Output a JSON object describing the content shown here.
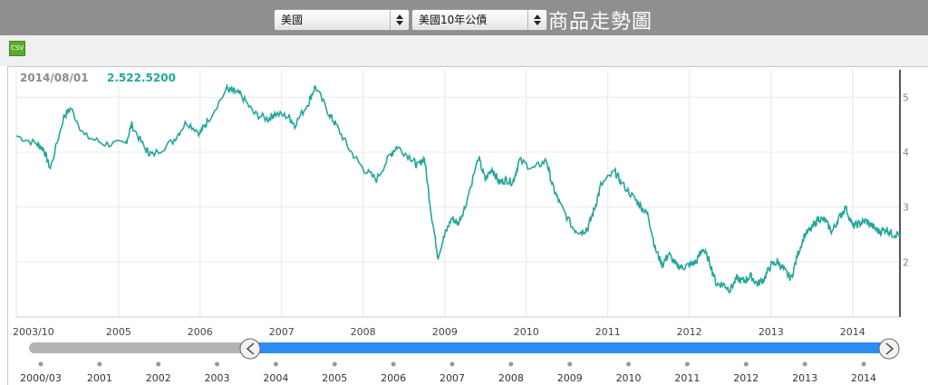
{
  "header": {
    "country_select": "美國",
    "product_select": "美國10年公債",
    "title": "商品走勢圖"
  },
  "toolbar": {
    "csv_label": "CSV"
  },
  "readout": {
    "date": "2014/08/01",
    "value": "2.522.5200"
  },
  "colors": {
    "series": "#26a69a",
    "navigator_track": "#b3b3b3",
    "navigator_range": "#2d8cf0",
    "topbar": "#8f8f8f"
  },
  "icons": {
    "select_arrows": "up-down-arrows-icon",
    "handle": "chevron-left-icon",
    "handle_right": "chevron-right-icon"
  },
  "chart_data": {
    "type": "line",
    "title": "",
    "xlabel": "",
    "ylabel": "",
    "xlim": [
      "2003-10-01",
      "2014-08-01"
    ],
    "ylim": [
      1,
      5.5
    ],
    "y_ticks": [
      "2",
      "3",
      "4",
      "5"
    ],
    "x_ticks": [
      "2003/10",
      "2005",
      "2006",
      "2007",
      "2008",
      "2009",
      "2010",
      "2011",
      "2012",
      "2013",
      "2014"
    ],
    "series": [
      {
        "name": "",
        "x": [
          "2003-10",
          "2004-01",
          "2004-02",
          "2004-03",
          "2004-05",
          "2004-06",
          "2004-08",
          "2004-11",
          "2005-02",
          "2005-03",
          "2005-05",
          "2005-06",
          "2005-09",
          "2005-11",
          "2006-01",
          "2006-02",
          "2006-05",
          "2006-06",
          "2006-07",
          "2006-09",
          "2006-11",
          "2006-12",
          "2007-02",
          "2007-03",
          "2007-05",
          "2007-06",
          "2007-08",
          "2007-09",
          "2007-11",
          "2008-01",
          "2008-03",
          "2008-05",
          "2008-06",
          "2008-08",
          "2008-09",
          "2008-10",
          "2008-11",
          "2008-12",
          "2009-01",
          "2009-02",
          "2009-03",
          "2009-04",
          "2009-06",
          "2009-07",
          "2009-08",
          "2009-09",
          "2009-10",
          "2009-11",
          "2009-12",
          "2010-02",
          "2010-04",
          "2010-05",
          "2010-06",
          "2010-08",
          "2010-09",
          "2010-10",
          "2010-11",
          "2010-12",
          "2011-02",
          "2011-03",
          "2011-05",
          "2011-06",
          "2011-07",
          "2011-08",
          "2011-09",
          "2011-10",
          "2011-11",
          "2011-12",
          "2012-01",
          "2012-02",
          "2012-03",
          "2012-04",
          "2012-05",
          "2012-06",
          "2012-07",
          "2012-08",
          "2012-09",
          "2012-10",
          "2012-11",
          "2012-12",
          "2013-01",
          "2013-02",
          "2013-03",
          "2013-04",
          "2013-05",
          "2013-06",
          "2013-07",
          "2013-08",
          "2013-09",
          "2013-10",
          "2013-11",
          "2013-12",
          "2014-01",
          "2014-02",
          "2014-03",
          "2014-04",
          "2014-05",
          "2014-06",
          "2014-07",
          "2014-08"
        ],
        "values": [
          4.3,
          4.15,
          4.05,
          3.7,
          4.65,
          4.8,
          4.3,
          4.15,
          4.15,
          4.5,
          4.05,
          3.95,
          4.2,
          4.55,
          4.35,
          4.55,
          5.15,
          5.1,
          5.05,
          4.7,
          4.6,
          4.7,
          4.65,
          4.5,
          4.9,
          5.2,
          4.7,
          4.5,
          4.05,
          3.7,
          3.5,
          3.95,
          4.1,
          3.9,
          3.75,
          3.9,
          2.9,
          2.1,
          2.5,
          2.8,
          2.7,
          3.0,
          3.9,
          3.5,
          3.7,
          3.45,
          3.5,
          3.45,
          3.85,
          3.7,
          3.85,
          3.35,
          3.05,
          2.6,
          2.55,
          2.6,
          2.95,
          3.4,
          3.65,
          3.45,
          3.15,
          3.0,
          2.85,
          2.25,
          1.95,
          2.15,
          1.95,
          1.9,
          1.95,
          2.0,
          2.25,
          2.0,
          1.6,
          1.6,
          1.5,
          1.7,
          1.65,
          1.75,
          1.6,
          1.7,
          1.95,
          2.0,
          1.85,
          1.7,
          2.15,
          2.5,
          2.6,
          2.8,
          2.75,
          2.55,
          2.8,
          3.0,
          2.65,
          2.7,
          2.75,
          2.65,
          2.55,
          2.6,
          2.5,
          2.52
        ]
      }
    ],
    "navigator": {
      "x_ticks": [
        "2000/03",
        "2001",
        "2002",
        "2003",
        "2004",
        "2005",
        "2006",
        "2007",
        "2008",
        "2009",
        "2010",
        "2011",
        "2012",
        "2013",
        "2014"
      ],
      "range": [
        "2003-10",
        "2014-08"
      ]
    }
  }
}
